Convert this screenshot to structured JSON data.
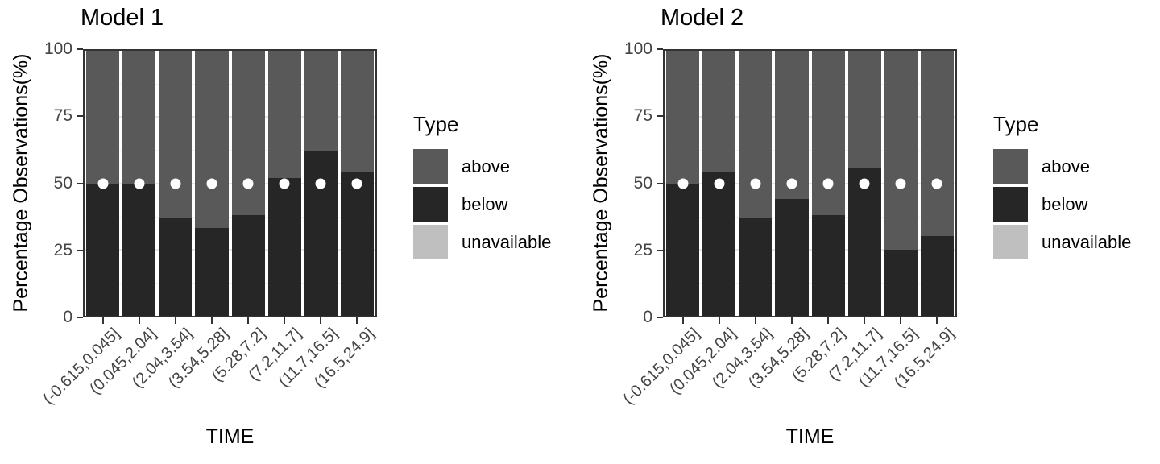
{
  "figure": {
    "y_axis_title": "Percentage Observations(%)",
    "x_axis_title": "TIME",
    "y_ticks": [
      0,
      25,
      50,
      75,
      100
    ],
    "grid": {
      "major": [
        25,
        50,
        75
      ],
      "minor": [
        12.5,
        37.5,
        62.5,
        87.5
      ]
    },
    "legend": {
      "title": "Type",
      "items": [
        {
          "label": "above",
          "color": "#595959"
        },
        {
          "label": "below",
          "color": "#262626"
        },
        {
          "label": "unavailable",
          "color": "#bfbfbf"
        }
      ]
    },
    "reference_marker": {
      "value": 50,
      "shape": "circle",
      "color": "#ffffff"
    },
    "colors": {
      "above": "#595959",
      "below": "#262626",
      "unavailable": "#bfbfbf",
      "panel_border": "#333333",
      "axis_text": "#444444",
      "grid_major": "#e5e5e5",
      "grid_minor": "#f0f0f0"
    }
  },
  "chart_data": [
    {
      "type": "bar",
      "stacked": true,
      "title": "Model 1",
      "xlabel": "TIME",
      "ylabel": "Percentage Observations(%)",
      "ylim": [
        0,
        100
      ],
      "legend_position": "right",
      "categories": [
        "(-0.615,0.045]",
        "(0.045,2.04]",
        "(2.04,3.54]",
        "(3.54,5.28]",
        "(5.28,7.2]",
        "(7.2,11.7]",
        "(11.7,16.5]",
        "(16.5,24.9]"
      ],
      "series": [
        {
          "name": "below",
          "values": [
            50,
            50,
            37,
            33,
            38,
            52,
            62,
            54
          ]
        },
        {
          "name": "above",
          "values": [
            50,
            50,
            63,
            67,
            62,
            48,
            38,
            46
          ]
        },
        {
          "name": "unavailable",
          "values": [
            0,
            0,
            0,
            0,
            0,
            0,
            0,
            0
          ]
        }
      ],
      "reference_points_y": 50
    },
    {
      "type": "bar",
      "stacked": true,
      "title": "Model 2",
      "xlabel": "TIME",
      "ylabel": "Percentage Observations(%)",
      "ylim": [
        0,
        100
      ],
      "legend_position": "right",
      "categories": [
        "(-0.615,0.045]",
        "(0.045,2.04]",
        "(2.04,3.54]",
        "(3.54,5.28]",
        "(5.28,7.2]",
        "(7.2,11.7]",
        "(11.7,16.5]",
        "(16.5,24.9]"
      ],
      "series": [
        {
          "name": "below",
          "values": [
            50,
            54,
            37,
            44,
            38,
            56,
            25,
            30
          ]
        },
        {
          "name": "above",
          "values": [
            50,
            46,
            63,
            56,
            62,
            44,
            75,
            70
          ]
        },
        {
          "name": "unavailable",
          "values": [
            0,
            0,
            0,
            0,
            0,
            0,
            0,
            0
          ]
        }
      ],
      "reference_points_y": 50
    }
  ]
}
